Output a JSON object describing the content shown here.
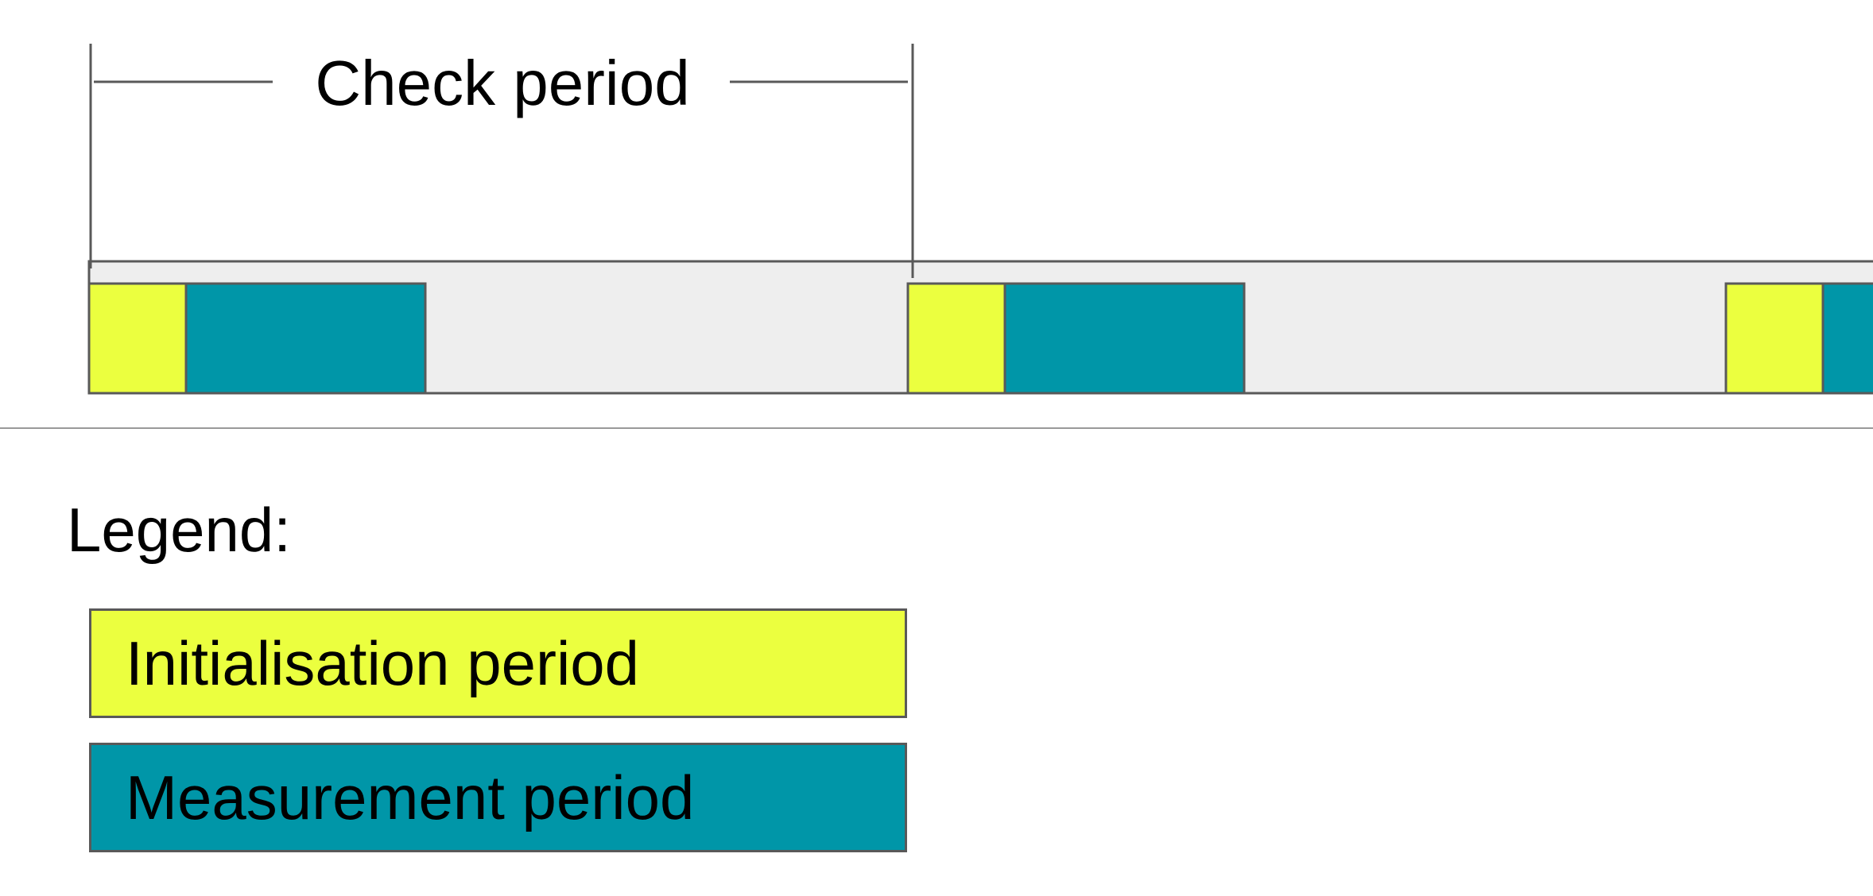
{
  "diagram": {
    "check_period_label": "Check period",
    "timeline_cycles": [
      {
        "segments": [
          "initialisation",
          "measurement"
        ]
      },
      {
        "segments": [
          "initialisation",
          "measurement"
        ]
      },
      {
        "segments": [
          "initialisation",
          "measurement"
        ]
      }
    ]
  },
  "legend": {
    "heading": "Legend:",
    "items": [
      {
        "key": "initialisation",
        "label": "Initialisation period",
        "color": "#ebff3f"
      },
      {
        "key": "measurement",
        "label": "Measurement period",
        "color": "#0096a8"
      }
    ]
  },
  "colors": {
    "track_fill": "#eeeeee",
    "outline": "#595959",
    "divider": "#999999",
    "text": "#000000"
  }
}
